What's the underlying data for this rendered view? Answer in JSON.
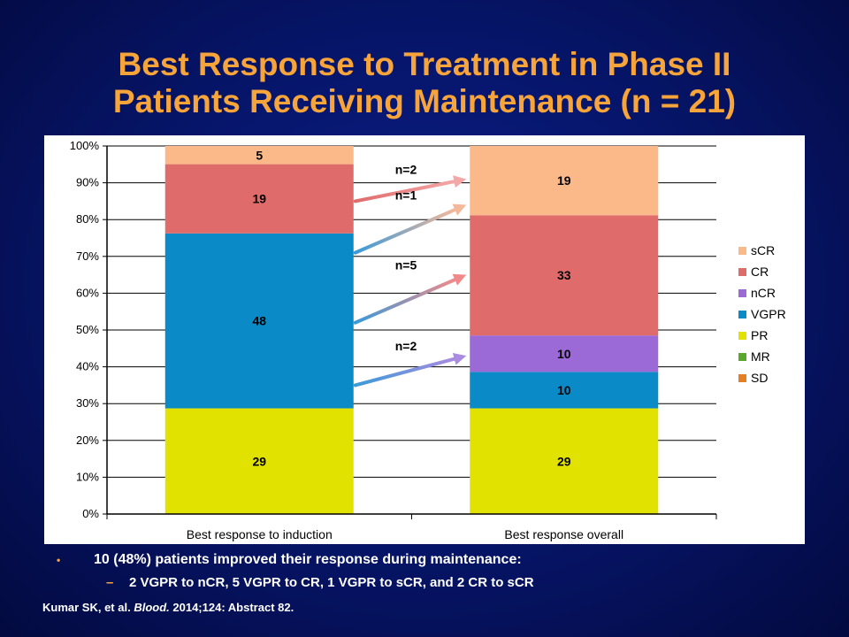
{
  "title_line1": "Best Response to Treatment in Phase II",
  "title_line2": "Patients Receiving Maintenance (n = 21)",
  "chart_data": {
    "type": "bar",
    "stacked": true,
    "categories": [
      "Best response to induction",
      "Best response overall"
    ],
    "series": [
      {
        "name": "SD",
        "color": "#e67e22",
        "values": [
          0,
          0
        ]
      },
      {
        "name": "MR",
        "color": "#58a82c",
        "values": [
          0,
          0
        ]
      },
      {
        "name": "PR",
        "color": "#e2e200",
        "values": [
          29,
          29
        ]
      },
      {
        "name": "VGPR",
        "color": "#0a8bc8",
        "values": [
          48,
          10
        ]
      },
      {
        "name": "nCR",
        "color": "#9b6ad6",
        "values": [
          0,
          10
        ]
      },
      {
        "name": "CR",
        "color": "#e06b6b",
        "values": [
          19,
          33
        ]
      },
      {
        "name": "sCR",
        "color": "#fbb98a",
        "values": [
          5,
          19
        ]
      }
    ],
    "legend_order": [
      "sCR",
      "CR",
      "nCR",
      "VGPR",
      "PR",
      "MR",
      "SD"
    ],
    "legend_position": "right",
    "ylim": [
      0,
      100
    ],
    "yticks": [
      "0%",
      "10%",
      "20%",
      "30%",
      "40%",
      "50%",
      "60%",
      "70%",
      "80%",
      "90%",
      "100%"
    ],
    "grid": true,
    "annotations": [
      {
        "label": "n=2",
        "from_pct": 85,
        "to_pct": 91,
        "color_start": "#e06b6b",
        "color_end": "#f4a7a7"
      },
      {
        "label": "n=1",
        "from_pct": 71,
        "to_pct": 84,
        "color_start": "#3a9ad9",
        "color_end": "#f4b89a"
      },
      {
        "label": "n=5",
        "from_pct": 52,
        "to_pct": 65,
        "color_start": "#3a9ad9",
        "color_end": "#f08a8a"
      },
      {
        "label": "n=2",
        "from_pct": 35,
        "to_pct": 43,
        "color_start": "#3a9ad9",
        "color_end": "#a98be0"
      }
    ]
  },
  "bullet_main": "10 (48%) patients improved their response during maintenance:",
  "bullet_sub": "2 VGPR to nCR, 5 VGPR to CR, 1 VGPR to sCR, and 2 CR to sCR",
  "citation_pre": "Kumar SK, et al.",
  "citation_journal": "Blood.",
  "citation_post": "2014;124: Abstract 82.",
  "bullet_char": "•",
  "dash_char": "–"
}
